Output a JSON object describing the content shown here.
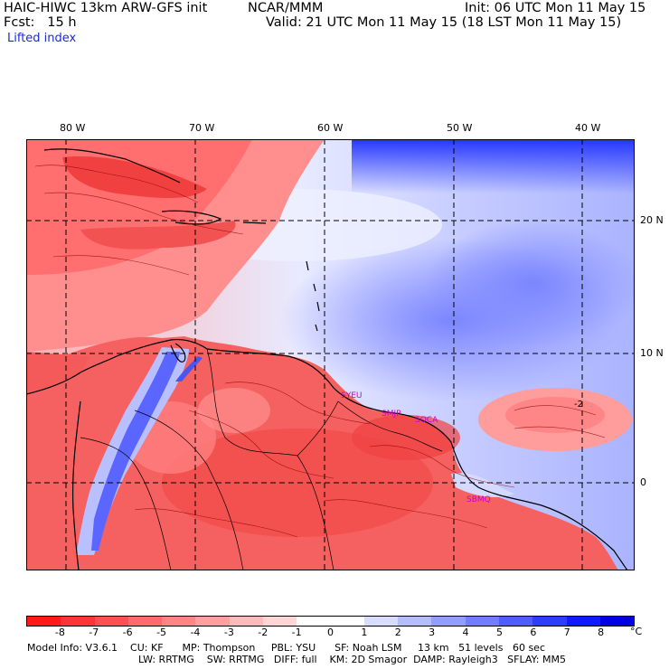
{
  "header": {
    "model": "HAIC-HIWC 13km ARW-GFS init",
    "org": "NCAR/MMM",
    "init": "Init: 06 UTC Mon 11 May 15",
    "fcst": "Fcst:   15 h",
    "valid": "Valid: 21 UTC Mon 11 May 15 (18 LST Mon 11 May 15)",
    "field": "Lifted index"
  },
  "axes": {
    "lon_labels": [
      "80 W",
      "70 W",
      "60 W",
      "50 W",
      "40 W"
    ],
    "lat_labels": [
      "20 N",
      "10 N",
      "0"
    ]
  },
  "stations": [
    "SYEU",
    "SMJP",
    "SOCA",
    "SBMQ"
  ],
  "contour_labels": [
    "-2"
  ],
  "colorbar": {
    "labels": [
      "-8",
      "-7",
      "-6",
      "-5",
      "-4",
      "-3",
      "-2",
      "-1",
      "0",
      "1",
      "2",
      "3",
      "4",
      "5",
      "6",
      "7",
      "8"
    ],
    "unit": "°C",
    "colors": [
      "#ff1a1a",
      "#ff3535",
      "#ff4f4f",
      "#ff6a6a",
      "#ff8585",
      "#ff9f9f",
      "#ffbaba",
      "#ffd5d5",
      "#ffffff",
      "#ffffff",
      "#d8dcff",
      "#b5bcff",
      "#939cff",
      "#717cff",
      "#4f5cff",
      "#2d3cff",
      "#0c1cff",
      "#0000e0"
    ]
  },
  "model_info": {
    "line1": "Model Info: V3.6.1    CU: KF      MP: Thompson     PBL: YSU      SF: Noah LSM     13 km   51 levels   60 sec",
    "line2": "LW: RRTMG    SW: RRTMG   DIFF: full    KM: 2D Smagor  DAMP: Rayleigh3   SFLAY: MM5"
  },
  "palette": {
    "land_red": "#f45a5a",
    "sea_red": "#ff9a9a",
    "deep_red": "#ee3030",
    "neutral": "#ffffff",
    "light_blue": "#b8bfff",
    "mid_blue": "#8c96ff",
    "deep_blue": "#3344ff",
    "andes_blue": "#4c55f0"
  }
}
